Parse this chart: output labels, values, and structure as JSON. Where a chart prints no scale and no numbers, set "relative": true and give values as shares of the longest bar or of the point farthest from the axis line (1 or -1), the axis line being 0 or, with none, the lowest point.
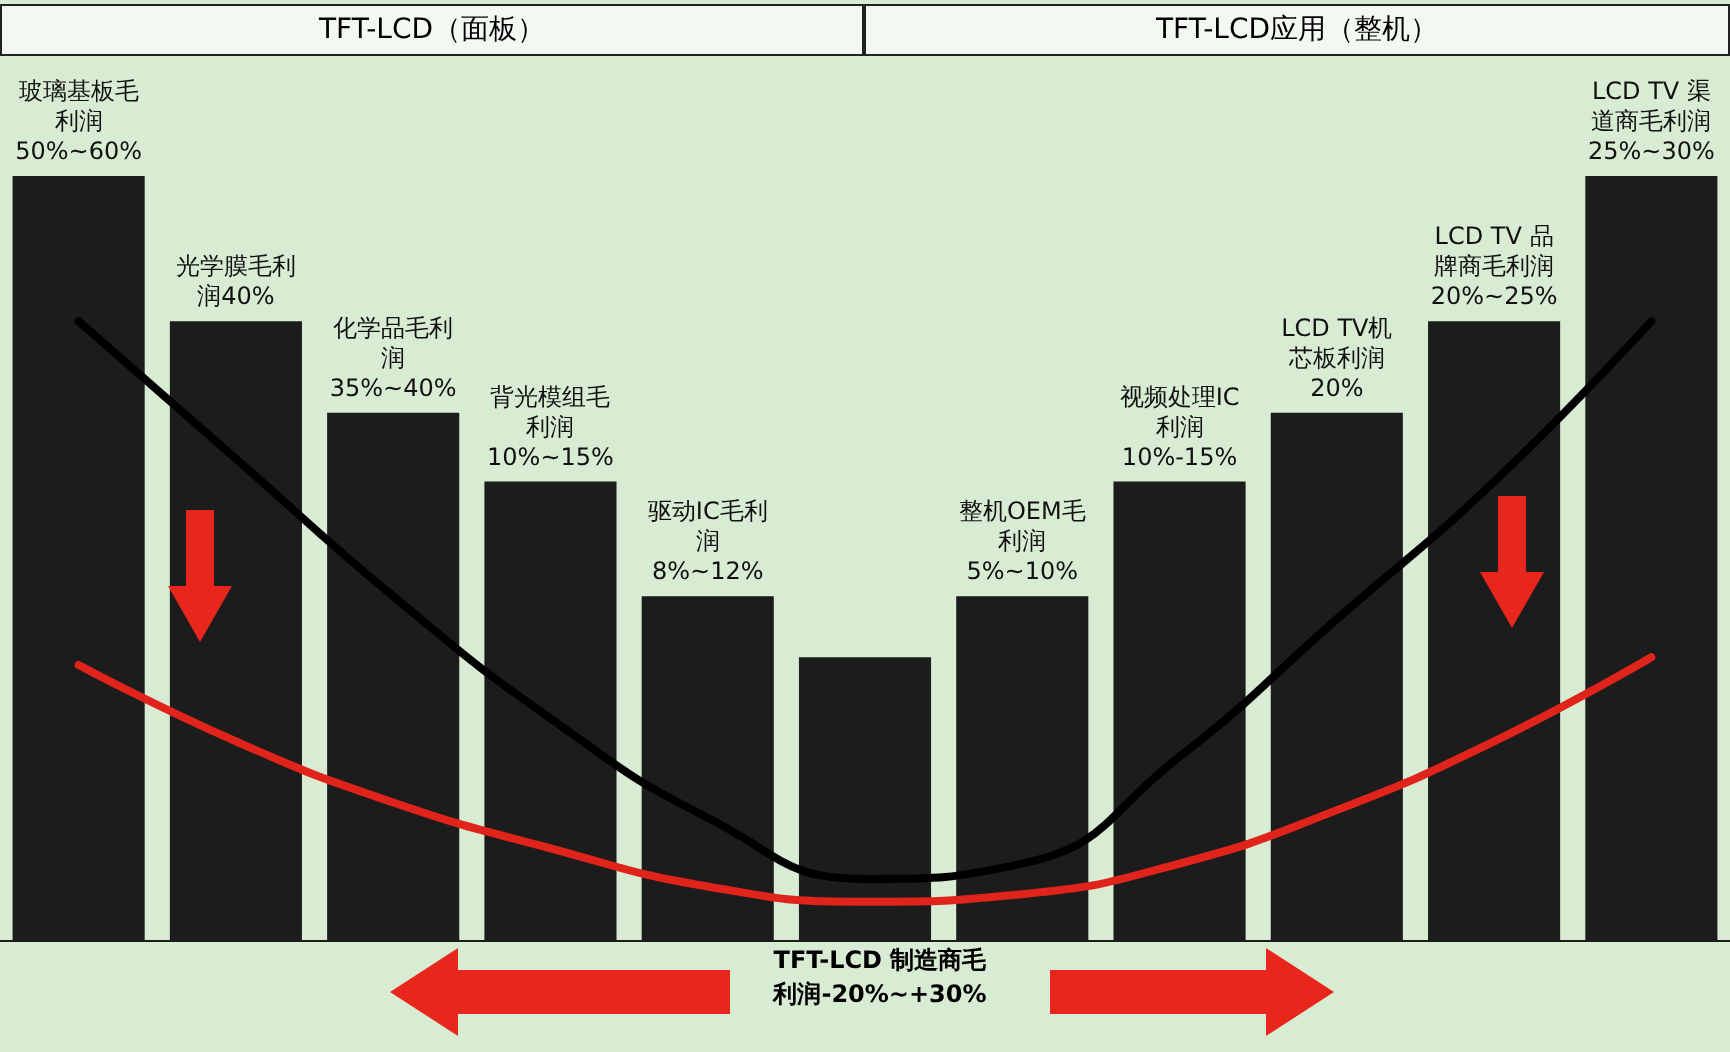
{
  "chart_data": {
    "type": "bar",
    "relative": true,
    "grid": false,
    "marker": "none",
    "categories": [
      "玻璃基板毛利润50%~60%",
      "光学膜毛利润40%",
      "化学品毛利润35%~40%",
      "背光模组毛利润10%~15%",
      "驱动IC毛利润8%~12%",
      null,
      "整机OEM毛利润5%~10%",
      "视频处理IC利润10%-15%",
      "LCD TV机芯板利润20%",
      "LCD TV 品牌商毛利润20%~25%",
      "LCD TV 渠道商毛利润25%~30%"
    ],
    "annotations": [
      "TFT-LCD（面板）",
      "TFT-LCD应用（整机）",
      "TFT-LCD 制造商毛利润-20%~+30%"
    ],
    "series": [
      {
        "color": "#1c1c1c",
        "values": [
          1,
          0.81,
          0.69,
          0.6,
          0.45,
          0.37,
          0.45,
          0.6,
          0.69,
          0.81,
          1
        ]
      },
      {
        "type": "line",
        "color": "#000000",
        "values": [
          0.81,
          0.63,
          0.45,
          0.29,
          0.16,
          0.08,
          0.1,
          0.24,
          0.42,
          0.6,
          0.81
        ]
      },
      {
        "type": "line",
        "color": "#e0241b",
        "values": [
          0.36,
          0.26,
          0.18,
          0.12,
          0.07,
          0.05,
          0.06,
          0.1,
          0.17,
          0.26,
          0.37
        ]
      }
    ]
  }
}
